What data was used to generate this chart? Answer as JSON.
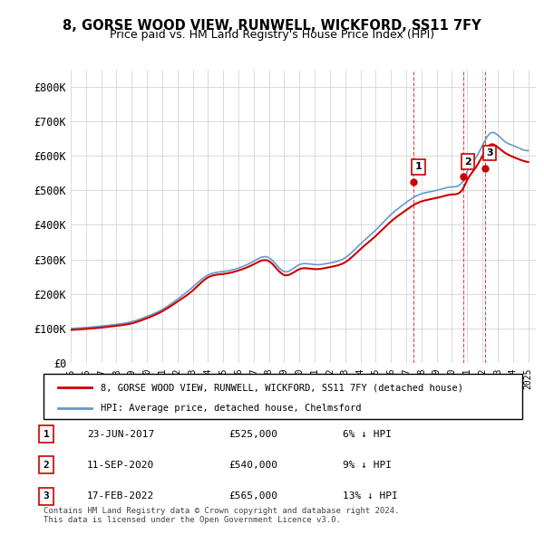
{
  "title": "8, GORSE WOOD VIEW, RUNWELL, WICKFORD, SS11 7FY",
  "subtitle": "Price paid vs. HM Land Registry's House Price Index (HPI)",
  "legend_house": "8, GORSE WOOD VIEW, RUNWELL, WICKFORD, SS11 7FY (detached house)",
  "legend_hpi": "HPI: Average price, detached house, Chelmsford",
  "footnote": "Contains HM Land Registry data © Crown copyright and database right 2024.\nThis data is licensed under the Open Government Licence v3.0.",
  "transactions": [
    {
      "num": 1,
      "date": "23-JUN-2017",
      "price": "£525,000",
      "pct": "6%",
      "dir": "↓",
      "label": "HPI"
    },
    {
      "num": 2,
      "date": "11-SEP-2020",
      "price": "£540,000",
      "pct": "9%",
      "dir": "↓",
      "label": "HPI"
    },
    {
      "num": 3,
      "date": "17-FEB-2022",
      "price": "£565,000",
      "pct": "13%",
      "dir": "↓",
      "label": "HPI"
    }
  ],
  "ylim": [
    0,
    850000
  ],
  "yticks": [
    0,
    100000,
    200000,
    300000,
    400000,
    500000,
    600000,
    700000,
    800000
  ],
  "ytick_labels": [
    "£0",
    "£100K",
    "£200K",
    "£300K",
    "£400K",
    "£500K",
    "£600K",
    "£700K",
    "£800K"
  ],
  "house_color": "#cc0000",
  "hpi_color": "#6699cc",
  "background_color": "#ffffff",
  "grid_color": "#cccccc",
  "transaction_marker_color": "#cc0000",
  "transaction_label_bg": "#ffffff",
  "transaction_label_border": "#cc0000"
}
